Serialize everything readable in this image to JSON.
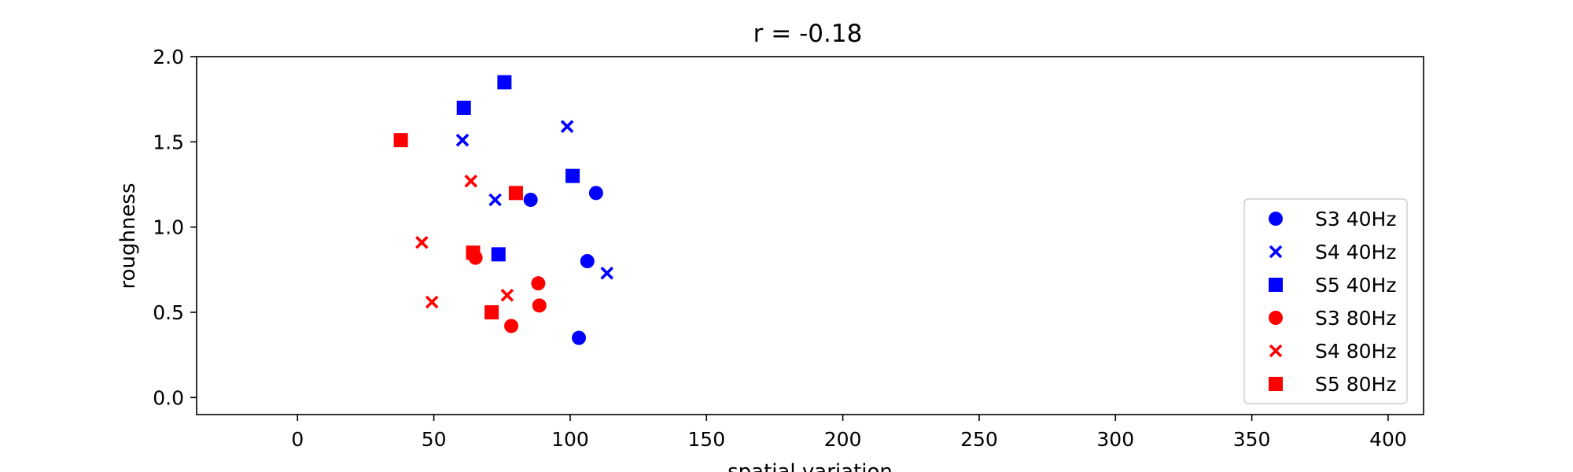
{
  "chart_data": {
    "type": "scatter",
    "title": "r = -0.18",
    "xlabel": "spatial variation",
    "ylabel": "roughness",
    "xlim": [
      -37,
      413
    ],
    "ylim": [
      -0.1,
      2.0
    ],
    "xticks": [
      "0",
      "50",
      "100",
      "150",
      "200",
      "250",
      "300",
      "350",
      "400"
    ],
    "yticks": [
      "0.0",
      "0.5",
      "1.0",
      "1.5",
      "2.0"
    ],
    "grid": false,
    "legend_position": "center-right",
    "series": [
      {
        "name": "S3 40Hz",
        "color": "#0000ff",
        "marker": "circle",
        "points": [
          [
            85.5,
            1.16
          ],
          [
            109.5,
            1.2
          ],
          [
            106.3,
            0.8
          ],
          [
            103.2,
            0.35
          ]
        ]
      },
      {
        "name": "S4 40Hz",
        "color": "#0000ff",
        "marker": "x",
        "points": [
          [
            60.5,
            1.51
          ],
          [
            98.9,
            1.59
          ],
          [
            72.5,
            1.16
          ],
          [
            113.5,
            0.73
          ]
        ]
      },
      {
        "name": "S5 40Hz",
        "color": "#0000ff",
        "marker": "square",
        "points": [
          [
            61.0,
            1.7
          ],
          [
            75.9,
            1.85
          ],
          [
            100.9,
            1.3
          ],
          [
            73.7,
            0.84
          ]
        ]
      },
      {
        "name": "S3 80Hz",
        "color": "#ff0000",
        "marker": "circle",
        "points": [
          [
            65.3,
            0.82
          ],
          [
            88.3,
            0.67
          ],
          [
            88.7,
            0.54
          ],
          [
            78.4,
            0.42
          ]
        ]
      },
      {
        "name": "S4 80Hz",
        "color": "#ff0000",
        "marker": "x",
        "points": [
          [
            63.6,
            1.27
          ],
          [
            45.6,
            0.91
          ],
          [
            49.3,
            0.56
          ],
          [
            76.9,
            0.6
          ]
        ]
      },
      {
        "name": "S5 80Hz",
        "color": "#ff0000",
        "marker": "square",
        "points": [
          [
            37.9,
            1.51
          ],
          [
            80.1,
            1.2
          ],
          [
            64.4,
            0.85
          ],
          [
            71.2,
            0.5
          ]
        ]
      }
    ]
  }
}
